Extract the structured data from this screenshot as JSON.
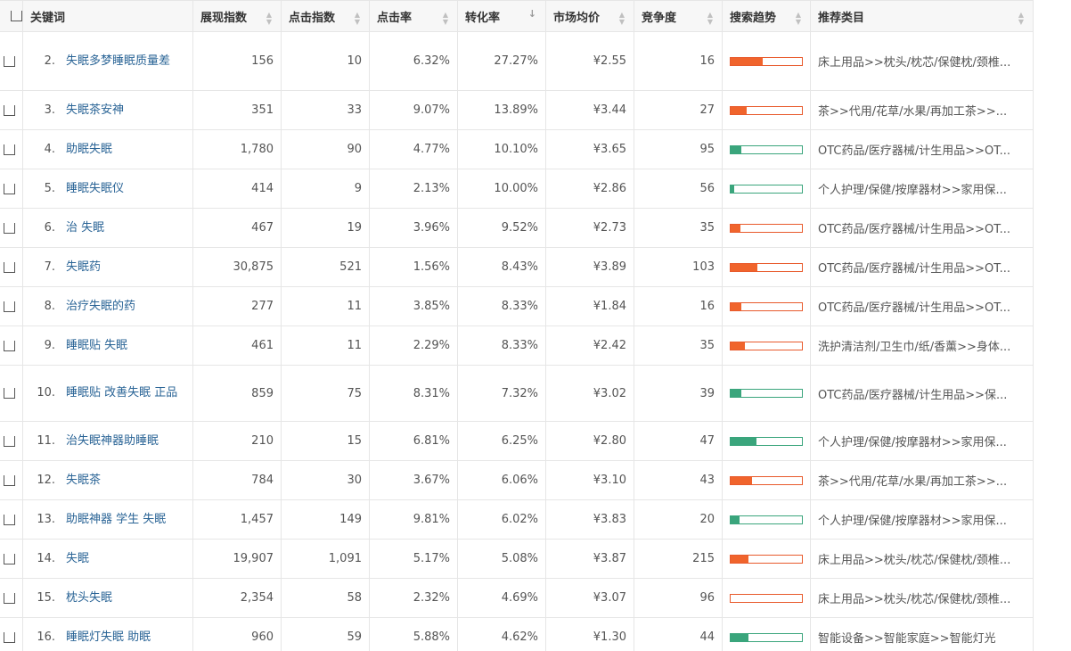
{
  "headers": {
    "keyword": "关键词",
    "impressions": "展现指数",
    "clicks": "点击指数",
    "ctr": "点击率",
    "conversion": "转化率",
    "avg_price": "市场均价",
    "competition": "竞争度",
    "trend": "搜索趋势",
    "category": "推荐类目"
  },
  "colors": {
    "up": "#f0642c",
    "down": "#3aa57c",
    "link": "#2a6496"
  },
  "rows": [
    {
      "rank": "2.",
      "keyword": "失眠多梦睡眠质量差",
      "impressions": "156",
      "clicks": "10",
      "ctr": "6.32%",
      "conversion": "27.27%",
      "avg_price": "¥2.55",
      "competition": "16",
      "trend_level": 0.45,
      "trend_dir": "up",
      "category": "床上用品>>枕头/枕芯/保健枕/颈椎..."
    },
    {
      "rank": "3.",
      "keyword": "失眠茶安神",
      "impressions": "351",
      "clicks": "33",
      "ctr": "9.07%",
      "conversion": "13.89%",
      "avg_price": "¥3.44",
      "competition": "27",
      "trend_level": 0.22,
      "trend_dir": "up",
      "category": "茶>>代用/花草/水果/再加工茶>>..."
    },
    {
      "rank": "4.",
      "keyword": "助眠失眠",
      "impressions": "1,780",
      "clicks": "90",
      "ctr": "4.77%",
      "conversion": "10.10%",
      "avg_price": "¥3.65",
      "competition": "95",
      "trend_level": 0.15,
      "trend_dir": "down",
      "category": "OTC药品/医疗器械/计生用品>>OT..."
    },
    {
      "rank": "5.",
      "keyword": "睡眠失眠仪",
      "impressions": "414",
      "clicks": "9",
      "ctr": "2.13%",
      "conversion": "10.00%",
      "avg_price": "¥2.86",
      "competition": "56",
      "trend_level": 0.05,
      "trend_dir": "down",
      "category": "个人护理/保健/按摩器材>>家用保..."
    },
    {
      "rank": "6.",
      "keyword": "治 失眠",
      "impressions": "467",
      "clicks": "19",
      "ctr": "3.96%",
      "conversion": "9.52%",
      "avg_price": "¥2.73",
      "competition": "35",
      "trend_level": 0.14,
      "trend_dir": "up",
      "category": "OTC药品/医疗器械/计生用品>>OT..."
    },
    {
      "rank": "7.",
      "keyword": "失眠药",
      "impressions": "30,875",
      "clicks": "521",
      "ctr": "1.56%",
      "conversion": "8.43%",
      "avg_price": "¥3.89",
      "competition": "103",
      "trend_level": 0.38,
      "trend_dir": "up",
      "category": "OTC药品/医疗器械/计生用品>>OT..."
    },
    {
      "rank": "8.",
      "keyword": "治疗失眠的药",
      "impressions": "277",
      "clicks": "11",
      "ctr": "3.85%",
      "conversion": "8.33%",
      "avg_price": "¥1.84",
      "competition": "16",
      "trend_level": 0.15,
      "trend_dir": "up",
      "category": "OTC药品/医疗器械/计生用品>>OT..."
    },
    {
      "rank": "9.",
      "keyword": "睡眠贴 失眠",
      "impressions": "461",
      "clicks": "11",
      "ctr": "2.29%",
      "conversion": "8.33%",
      "avg_price": "¥2.42",
      "competition": "35",
      "trend_level": 0.2,
      "trend_dir": "up",
      "category": "洗护清洁剂/卫生巾/纸/香薰>>身体..."
    },
    {
      "rank": "10.",
      "keyword": "睡眠贴 改善失眠 正品",
      "impressions": "859",
      "clicks": "75",
      "ctr": "8.31%",
      "conversion": "7.32%",
      "avg_price": "¥3.02",
      "competition": "39",
      "trend_level": 0.15,
      "trend_dir": "down",
      "category": "OTC药品/医疗器械/计生用品>>保..."
    },
    {
      "rank": "11.",
      "keyword": "治失眠神器助睡眠",
      "impressions": "210",
      "clicks": "15",
      "ctr": "6.81%",
      "conversion": "6.25%",
      "avg_price": "¥2.80",
      "competition": "47",
      "trend_level": 0.36,
      "trend_dir": "down",
      "category": "个人护理/保健/按摩器材>>家用保..."
    },
    {
      "rank": "12.",
      "keyword": "失眠茶",
      "impressions": "784",
      "clicks": "30",
      "ctr": "3.67%",
      "conversion": "6.06%",
      "avg_price": "¥3.10",
      "competition": "43",
      "trend_level": 0.3,
      "trend_dir": "up",
      "category": "茶>>代用/花草/水果/再加工茶>>..."
    },
    {
      "rank": "13.",
      "keyword": "助眠神器 学生 失眠",
      "impressions": "1,457",
      "clicks": "149",
      "ctr": "9.81%",
      "conversion": "6.02%",
      "avg_price": "¥3.83",
      "competition": "20",
      "trend_level": 0.12,
      "trend_dir": "down",
      "category": "个人护理/保健/按摩器材>>家用保..."
    },
    {
      "rank": "14.",
      "keyword": "失眠",
      "impressions": "19,907",
      "clicks": "1,091",
      "ctr": "5.17%",
      "conversion": "5.08%",
      "avg_price": "¥3.87",
      "competition": "215",
      "trend_level": 0.25,
      "trend_dir": "up",
      "category": "床上用品>>枕头/枕芯/保健枕/颈椎..."
    },
    {
      "rank": "15.",
      "keyword": "枕头失眠",
      "impressions": "2,354",
      "clicks": "58",
      "ctr": "2.32%",
      "conversion": "4.69%",
      "avg_price": "¥3.07",
      "competition": "96",
      "trend_level": 0.0,
      "trend_dir": "up",
      "category": "床上用品>>枕头/枕芯/保健枕/颈椎..."
    },
    {
      "rank": "16.",
      "keyword": "睡眠灯失眠 助眠",
      "impressions": "960",
      "clicks": "59",
      "ctr": "5.88%",
      "conversion": "4.62%",
      "avg_price": "¥1.30",
      "competition": "44",
      "trend_level": 0.25,
      "trend_dir": "down",
      "category": "智能设备>>智能家庭>>智能灯光"
    }
  ]
}
